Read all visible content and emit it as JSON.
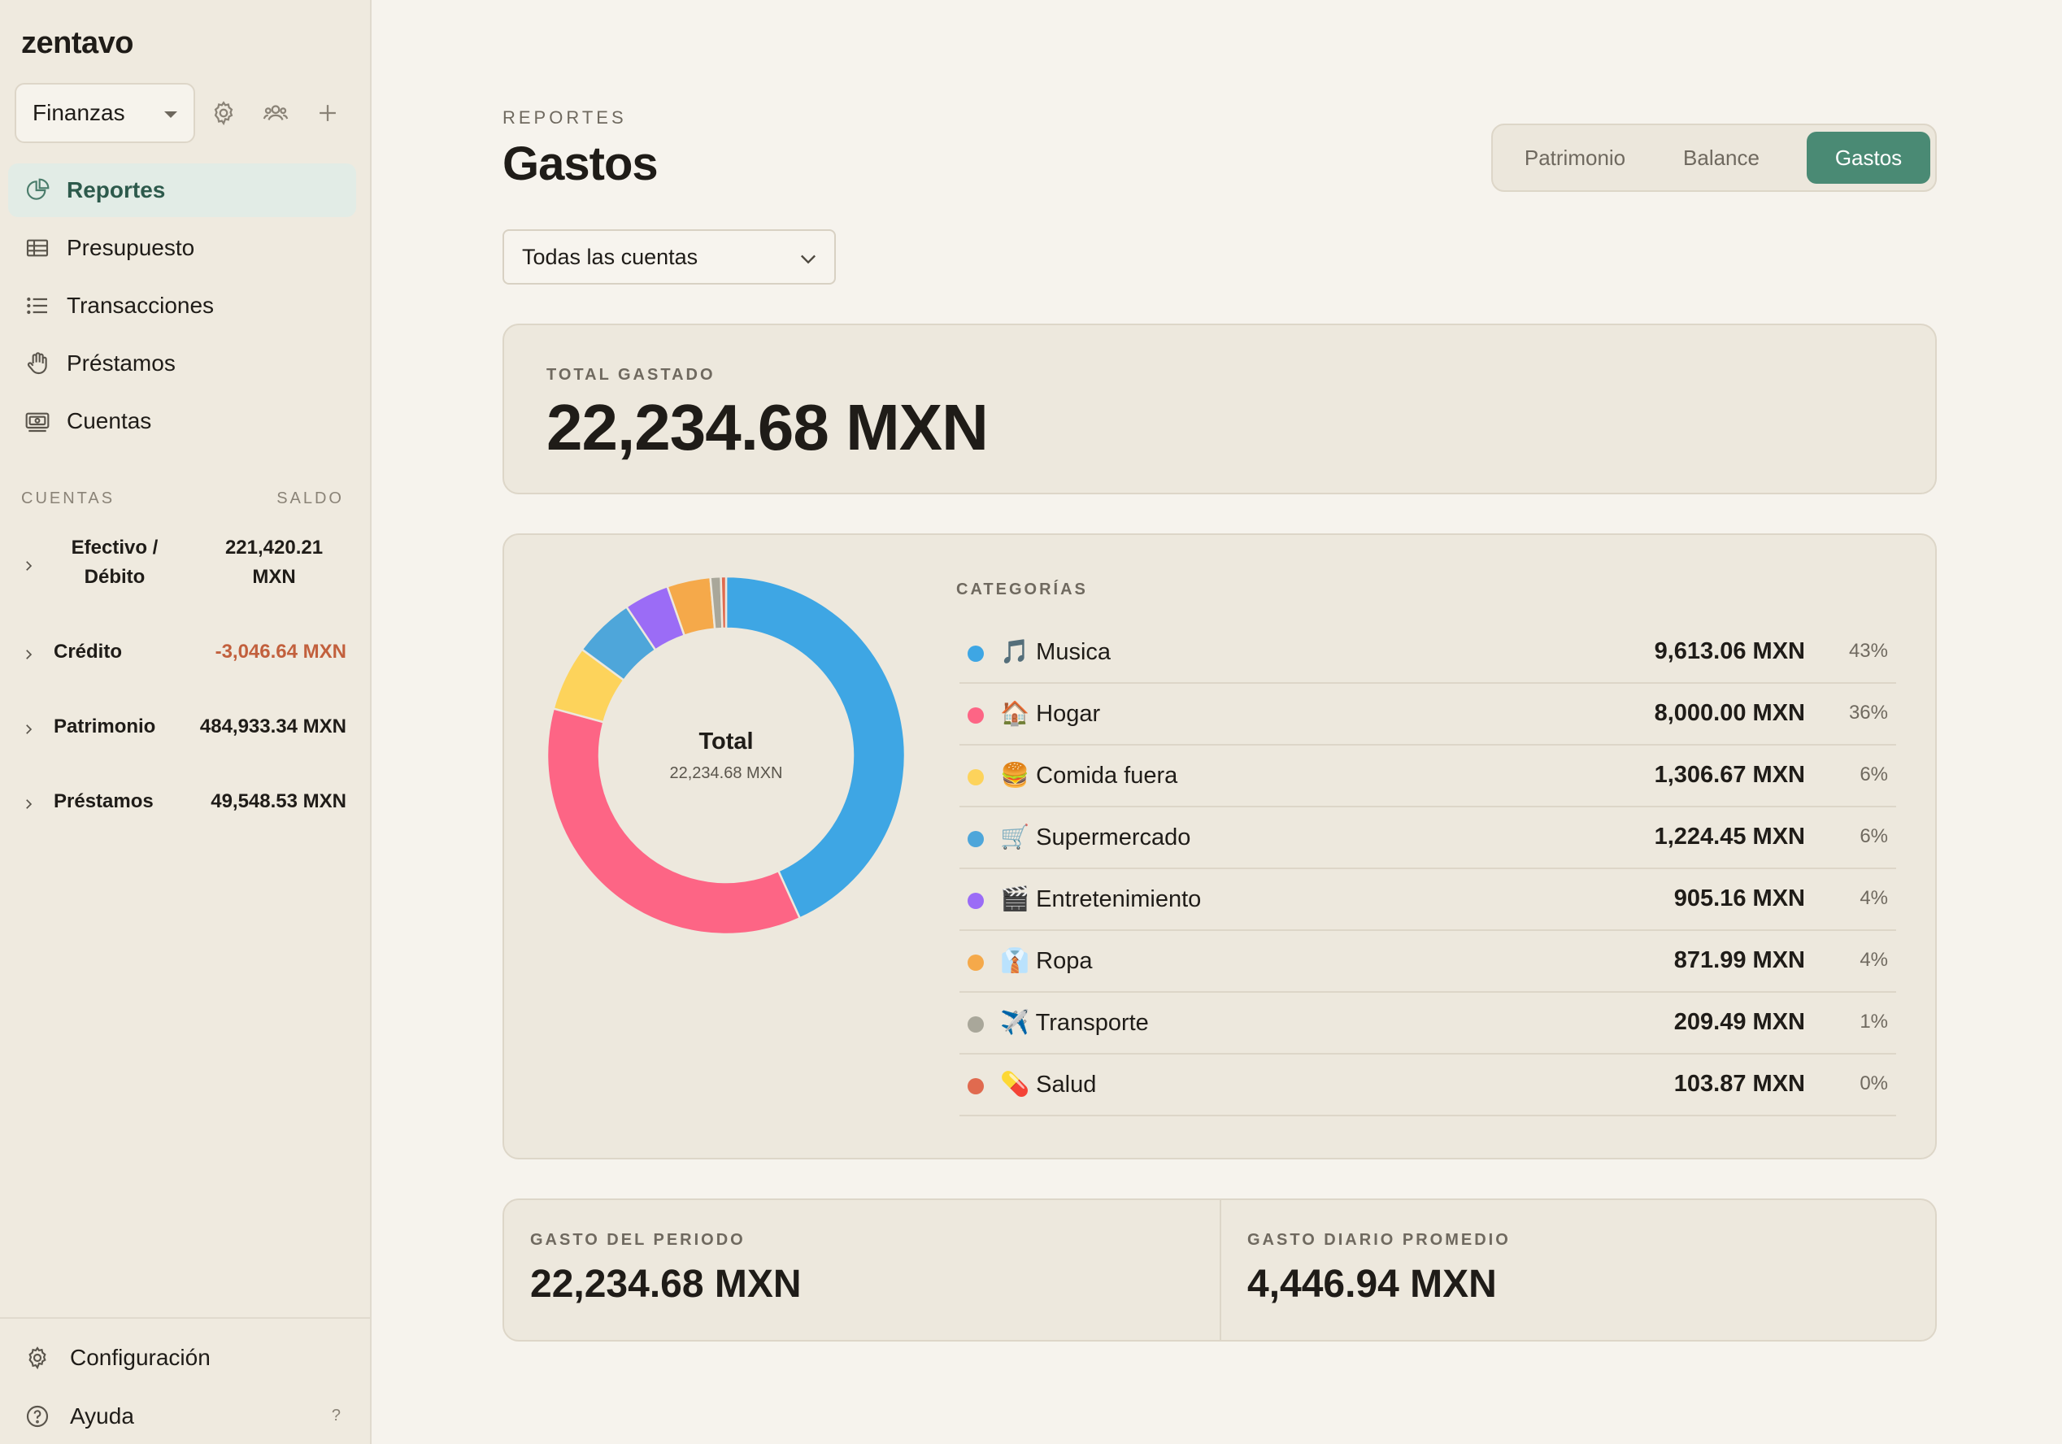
{
  "app": {
    "brand": "zentavo"
  },
  "workspace": {
    "name": "Finanzas"
  },
  "nav": {
    "reportes": "Reportes",
    "presupuesto": "Presupuesto",
    "transacciones": "Transacciones",
    "prestamos": "Préstamos",
    "cuentas": "Cuentas"
  },
  "accounts": {
    "header_left": "CUENTAS",
    "header_right": "SALDO",
    "items": [
      {
        "name": "Efectivo / Débito",
        "balance": "221,420.21 MXN"
      },
      {
        "name": "Crédito",
        "balance": "-3,046.64 MXN"
      },
      {
        "name": "Patrimonio",
        "balance": "484,933.34 MXN"
      },
      {
        "name": "Préstamos",
        "balance": "49,548.53 MXN"
      }
    ]
  },
  "footer": {
    "config": "Configuración",
    "help": "Ayuda",
    "help_hint": "?"
  },
  "page": {
    "eyebrow": "REPORTES",
    "title": "Gastos"
  },
  "tabs": {
    "patrimonio": "Patrimonio",
    "balance": "Balance",
    "gastos": "Gastos"
  },
  "filter": {
    "value": "Todas las cuentas"
  },
  "total": {
    "label": "TOTAL GASTADO",
    "value": "22,234.68 MXN"
  },
  "donut": {
    "label": "Total",
    "value": "22,234.68 MXN"
  },
  "categories": {
    "title": "CATEGORÍAS",
    "items": [
      {
        "name": "🎵 Musica",
        "amount": "9,613.06 MXN",
        "pct": "43%",
        "value": 9613.06,
        "color": "#3ea6e4"
      },
      {
        "name": "🏠 Hogar",
        "amount": "8,000.00 MXN",
        "pct": "36%",
        "value": 8000.0,
        "color": "#fd6585"
      },
      {
        "name": "🍔 Comida fuera",
        "amount": "1,306.67 MXN",
        "pct": "6%",
        "value": 1306.67,
        "color": "#fdd35b"
      },
      {
        "name": "🛒 Supermercado",
        "amount": "1,224.45 MXN",
        "pct": "6%",
        "value": 1224.45,
        "color": "#4ea6da"
      },
      {
        "name": "🎬 Entretenimiento",
        "amount": "905.16 MXN",
        "pct": "4%",
        "value": 905.16,
        "color": "#9b6cf6"
      },
      {
        "name": "👔 Ropa",
        "amount": "871.99 MXN",
        "pct": "4%",
        "value": 871.99,
        "color": "#f5a94a"
      },
      {
        "name": "✈️ Transporte",
        "amount": "209.49 MXN",
        "pct": "1%",
        "value": 209.49,
        "color": "#a9a79a"
      },
      {
        "name": "💊 Salud",
        "amount": "103.87 MXN",
        "pct": "0%",
        "value": 103.87,
        "color": "#e06a4f"
      }
    ]
  },
  "stats": {
    "period_label": "GASTO DEL PERIODO",
    "period_value": "22,234.68 MXN",
    "daily_label": "GASTO DIARIO PROMEDIO",
    "daily_value": "4,446.94 MXN"
  }
}
